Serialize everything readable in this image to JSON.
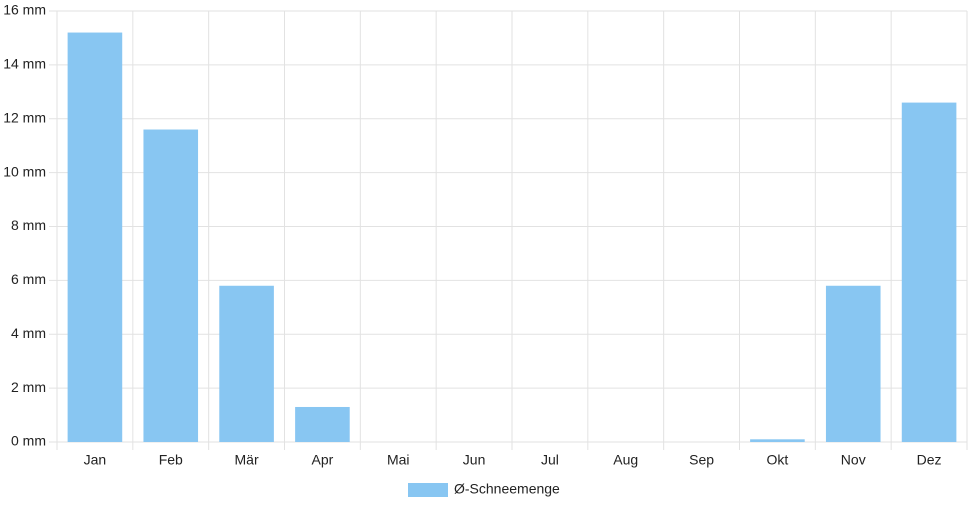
{
  "chart_data": {
    "type": "bar",
    "categories": [
      "Jan",
      "Feb",
      "Mär",
      "Apr",
      "Mai",
      "Jun",
      "Jul",
      "Aug",
      "Sep",
      "Okt",
      "Nov",
      "Dez"
    ],
    "series": [
      {
        "name": "Ø-Schneemenge",
        "color": "#88c6f2",
        "values": [
          15.2,
          11.6,
          5.8,
          1.3,
          0,
          0,
          0,
          0,
          0,
          0.1,
          5.8,
          12.6
        ]
      }
    ],
    "ylim": [
      0,
      16
    ],
    "yticks": [
      {
        "value": 0,
        "label": "0 mm"
      },
      {
        "value": 2,
        "label": "2 mm"
      },
      {
        "value": 4,
        "label": "4 mm"
      },
      {
        "value": 6,
        "label": "6 mm"
      },
      {
        "value": 8,
        "label": "8 mm"
      },
      {
        "value": 10,
        "label": "10 mm"
      },
      {
        "value": 12,
        "label": "12 mm"
      },
      {
        "value": 14,
        "label": "14 mm"
      },
      {
        "value": 16,
        "label": "16 mm"
      }
    ],
    "grid": true,
    "legend": "bottom"
  }
}
